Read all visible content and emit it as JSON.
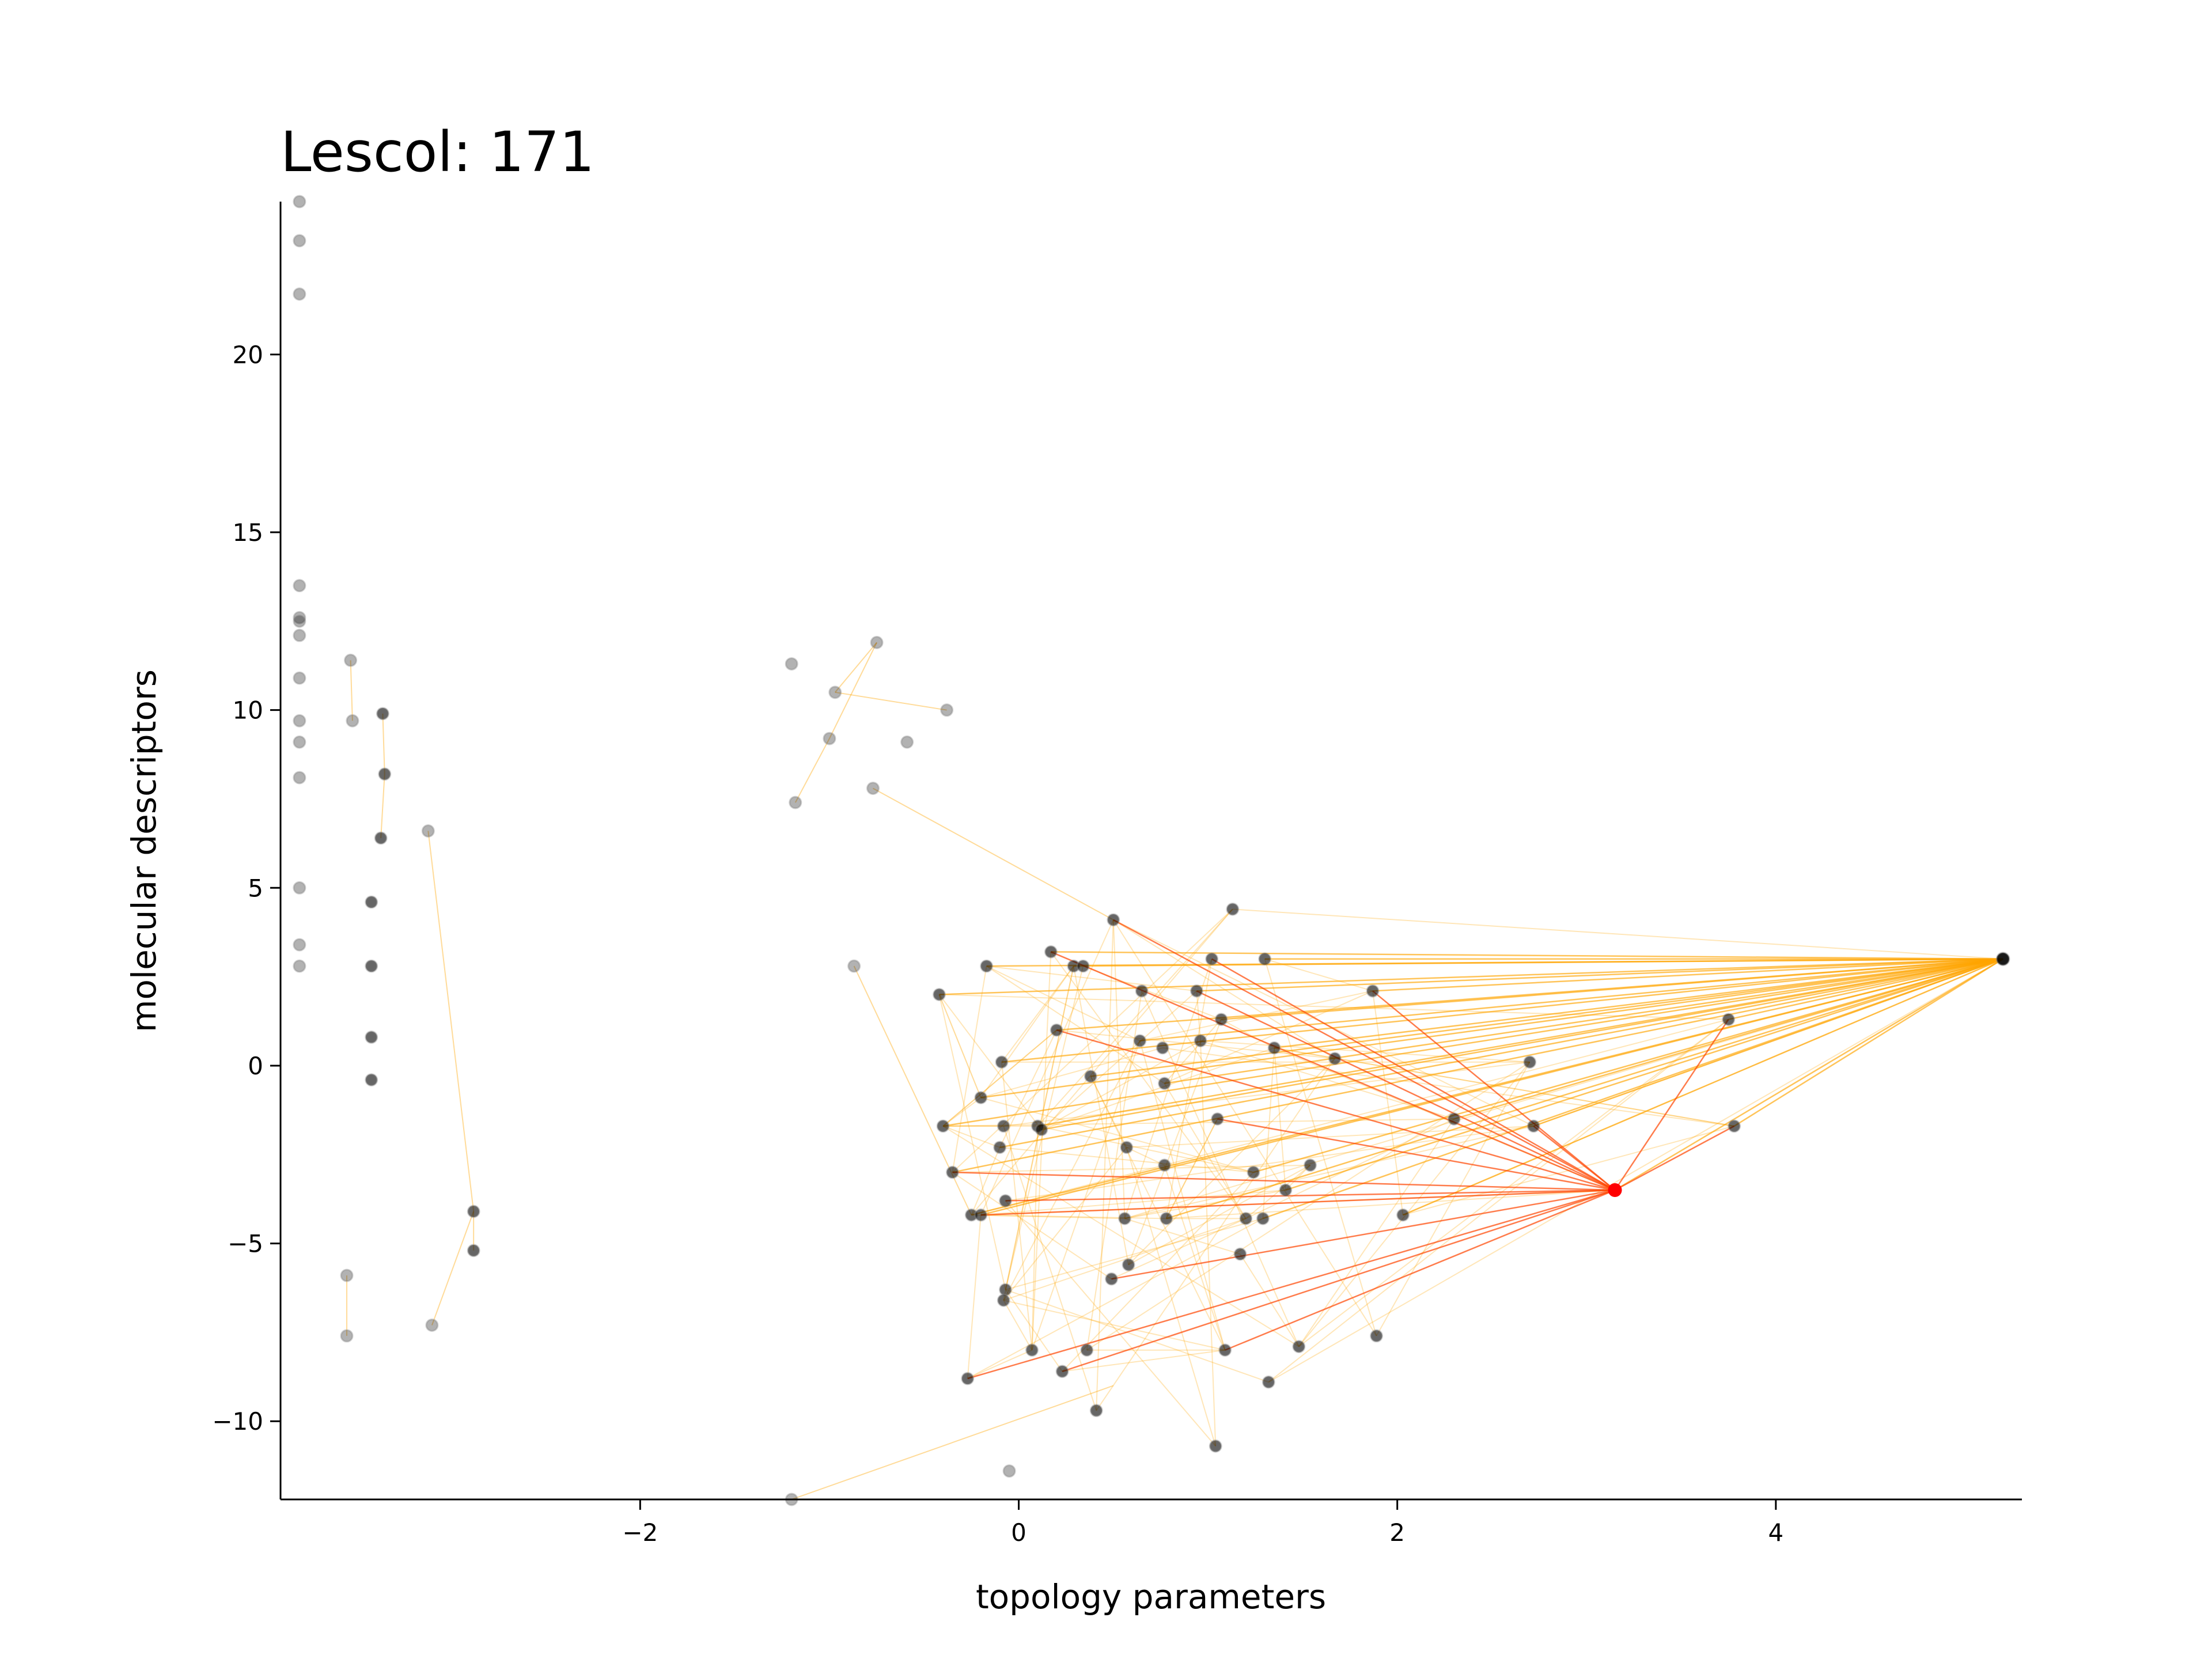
{
  "chart_data": {
    "type": "scatter",
    "title": "Lescol: 171",
    "xlabel": "topology parameters",
    "ylabel": "molecular descriptors",
    "xlim": [
      -3.9,
      5.3
    ],
    "ylim": [
      -12.2,
      24.3
    ],
    "x_ticks": [
      -2,
      0,
      2,
      4
    ],
    "x_tick_labels": [
      "−2",
      "0",
      "2",
      "4"
    ],
    "y_ticks": [
      -10,
      -5,
      0,
      5,
      10,
      15,
      20
    ],
    "y_tick_labels": [
      "−10",
      "−5",
      "0",
      "5",
      "10",
      "15",
      "20"
    ],
    "grid": false,
    "legend": "none",
    "highlight": {
      "x": 3.15,
      "y": -3.5,
      "color": "#ff0000"
    },
    "hub": {
      "x": 5.2,
      "y": 3.0
    },
    "colors": {
      "point": "#000000",
      "edge_near": "#ff4500",
      "edge_far": "#ffa500"
    },
    "points": [
      [
        -3.8,
        24.3
      ],
      [
        -3.8,
        23.2
      ],
      [
        -3.8,
        21.7
      ],
      [
        -3.8,
        13.5
      ],
      [
        -3.8,
        12.6
      ],
      [
        -3.8,
        12.5
      ],
      [
        -3.8,
        12.1
      ],
      [
        -3.8,
        10.9
      ],
      [
        -3.8,
        9.7
      ],
      [
        -3.8,
        9.1
      ],
      [
        -3.8,
        8.1
      ],
      [
        -3.8,
        5.0
      ],
      [
        -3.8,
        3.4
      ],
      [
        -3.8,
        2.8
      ],
      [
        -3.53,
        11.4
      ],
      [
        -3.52,
        9.7
      ],
      [
        -3.36,
        9.9
      ],
      [
        -3.35,
        8.2
      ],
      [
        -3.37,
        6.4
      ],
      [
        -3.42,
        4.6
      ],
      [
        -3.42,
        2.8
      ],
      [
        -3.42,
        0.8
      ],
      [
        -3.42,
        -0.4
      ],
      [
        -3.12,
        6.6
      ],
      [
        -2.88,
        -4.1
      ],
      [
        -2.88,
        -5.2
      ],
      [
        -3.55,
        -5.9
      ],
      [
        -3.55,
        -7.6
      ],
      [
        -3.1,
        -7.3
      ],
      [
        -1.2,
        11.3
      ],
      [
        -0.97,
        10.5
      ],
      [
        -0.75,
        11.9
      ],
      [
        -0.38,
        10.0
      ],
      [
        -1.0,
        9.2
      ],
      [
        -0.59,
        9.1
      ],
      [
        -0.77,
        7.8
      ],
      [
        -1.18,
        7.4
      ],
      [
        -0.87,
        2.8
      ],
      [
        -1.2,
        -12.2
      ],
      [
        -0.05,
        -11.4
      ],
      [
        0.5,
        4.1
      ],
      [
        1.13,
        4.4
      ],
      [
        1.02,
        3.0
      ],
      [
        1.3,
        3.0
      ],
      [
        0.17,
        3.2
      ],
      [
        0.29,
        2.8
      ],
      [
        0.34,
        2.8
      ],
      [
        -0.17,
        2.8
      ],
      [
        -0.42,
        2.0
      ],
      [
        0.65,
        2.1
      ],
      [
        0.94,
        2.1
      ],
      [
        1.87,
        2.1
      ],
      [
        1.07,
        1.3
      ],
      [
        3.75,
        1.3
      ],
      [
        0.2,
        1.0
      ],
      [
        0.64,
        0.7
      ],
      [
        0.96,
        0.7
      ],
      [
        0.76,
        0.5
      ],
      [
        1.35,
        0.5
      ],
      [
        1.67,
        0.2
      ],
      [
        2.7,
        0.1
      ],
      [
        -0.09,
        0.1
      ],
      [
        0.38,
        -0.3
      ],
      [
        0.77,
        -0.5
      ],
      [
        -0.2,
        -0.9
      ],
      [
        1.05,
        -1.5
      ],
      [
        2.3,
        -1.5
      ],
      [
        -0.4,
        -1.7
      ],
      [
        -0.08,
        -1.7
      ],
      [
        0.1,
        -1.7
      ],
      [
        0.12,
        -1.8
      ],
      [
        2.72,
        -1.7
      ],
      [
        3.78,
        -1.7
      ],
      [
        -0.1,
        -2.3
      ],
      [
        0.57,
        -2.3
      ],
      [
        0.77,
        -2.8
      ],
      [
        1.54,
        -2.8
      ],
      [
        -0.35,
        -3.0
      ],
      [
        1.24,
        -3.0
      ],
      [
        1.41,
        -3.5
      ],
      [
        -0.07,
        -3.8
      ],
      [
        -0.25,
        -4.2
      ],
      [
        -0.2,
        -4.2
      ],
      [
        0.56,
        -4.3
      ],
      [
        0.78,
        -4.3
      ],
      [
        1.2,
        -4.3
      ],
      [
        1.29,
        -4.3
      ],
      [
        2.03,
        -4.2
      ],
      [
        0.58,
        -5.6
      ],
      [
        1.17,
        -5.3
      ],
      [
        0.49,
        -6.0
      ],
      [
        -0.07,
        -6.3
      ],
      [
        -0.08,
        -6.6
      ],
      [
        0.07,
        -8.0
      ],
      [
        0.36,
        -8.0
      ],
      [
        1.09,
        -8.0
      ],
      [
        1.48,
        -7.9
      ],
      [
        1.89,
        -7.6
      ],
      [
        -0.27,
        -8.8
      ],
      [
        1.32,
        -8.9
      ],
      [
        0.23,
        -8.6
      ],
      [
        0.41,
        -9.7
      ],
      [
        1.04,
        -10.7
      ],
      [
        3.15,
        -3.5
      ],
      [
        5.2,
        3.0
      ]
    ]
  }
}
